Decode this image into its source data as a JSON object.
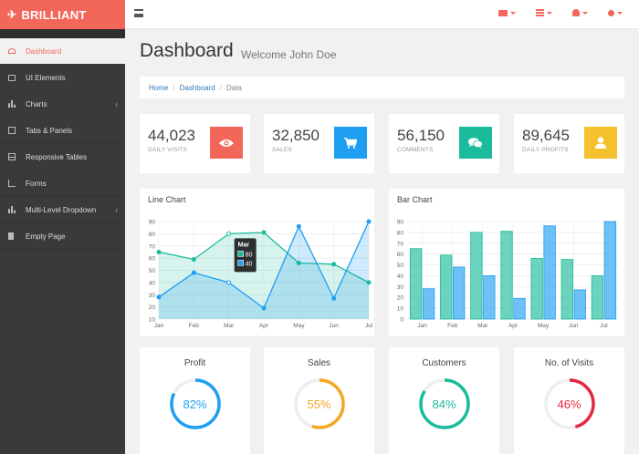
{
  "brand": {
    "name": "BRILLIANT",
    "icon": "plane-icon"
  },
  "topbar": {
    "icons": [
      {
        "name": "envelope-icon"
      },
      {
        "name": "tasks-icon"
      },
      {
        "name": "bell-icon"
      },
      {
        "name": "user-icon"
      }
    ],
    "accent": "#f3675b"
  },
  "sidebar": {
    "items": [
      {
        "label": "Dashboard",
        "icon": "dashboard-icon",
        "active": true
      },
      {
        "label": "UI Elements",
        "icon": "desktop-icon"
      },
      {
        "label": "Charts",
        "icon": "bar-chart-icon",
        "has_children": true
      },
      {
        "label": "Tabs & Panels",
        "icon": "qrcode-icon"
      },
      {
        "label": "Responsive Tables",
        "icon": "table-icon"
      },
      {
        "label": "Forms",
        "icon": "edit-icon"
      },
      {
        "label": "Multi-Level Dropdown",
        "icon": "sitemap-icon",
        "has_children": true
      },
      {
        "label": "Empty Page",
        "icon": "file-icon"
      }
    ],
    "chevron": "‹"
  },
  "header": {
    "title": "Dashboard",
    "subtitle": "Welcome John Doe"
  },
  "breadcrumb": {
    "items": [
      "Home",
      "Dashboard",
      "Data"
    ],
    "separator": "/"
  },
  "stats": [
    {
      "value": "44,023",
      "label": "DAILY VISITS",
      "icon": "eye-icon",
      "color": "#f3675b"
    },
    {
      "value": "32,850",
      "label": "SALES",
      "icon": "shopping-cart-icon",
      "color": "#1e9ff2"
    },
    {
      "value": "56,150",
      "label": "COMMENTS",
      "icon": "comments-icon",
      "color": "#1bbc9b"
    },
    {
      "value": "89,645",
      "label": "DAILY PROFITS",
      "icon": "user-icon",
      "color": "#f5c12e"
    }
  ],
  "charts": {
    "line": {
      "title": "Line Chart"
    },
    "bar": {
      "title": "Bar Chart"
    },
    "tooltip": {
      "title": "Mar",
      "values": [
        "80",
        "40"
      ]
    }
  },
  "chart_data": [
    {
      "type": "area",
      "title": "Line Chart",
      "categories": [
        "Jan",
        "Feb",
        "Mar",
        "Apr",
        "May",
        "Jun",
        "Jul"
      ],
      "ylim": [
        10,
        90
      ],
      "yticks": [
        10,
        20,
        30,
        40,
        50,
        60,
        70,
        80,
        90
      ],
      "grid": true,
      "series": [
        {
          "values": [
            65,
            59,
            80,
            81,
            56,
            55,
            40
          ],
          "color": "#1bbc9b"
        },
        {
          "values": [
            28,
            48,
            40,
            19,
            86,
            27,
            90
          ],
          "color": "#1e9ff2"
        }
      ]
    },
    {
      "type": "bar",
      "title": "Bar Chart",
      "categories": [
        "Jan",
        "Feb",
        "Mar",
        "Apr",
        "May",
        "Jun",
        "Jul"
      ],
      "ylim": [
        0,
        90
      ],
      "yticks": [
        0,
        10,
        20,
        30,
        40,
        50,
        60,
        70,
        80,
        90
      ],
      "grid": true,
      "series": [
        {
          "values": [
            65,
            59,
            80,
            81,
            56,
            55,
            40
          ],
          "color": "#1bbc9b"
        },
        {
          "values": [
            28,
            48,
            40,
            19,
            86,
            27,
            90
          ],
          "color": "#1e9ff2"
        }
      ]
    }
  ],
  "kpis": [
    {
      "title": "Profit",
      "value": "82%",
      "percent": 82,
      "color": "#1e9ff2"
    },
    {
      "title": "Sales",
      "value": "55%",
      "percent": 55,
      "color": "#f5a623"
    },
    {
      "title": "Customers",
      "value": "84%",
      "percent": 84,
      "color": "#1bbc9b"
    },
    {
      "title": "No. of Visits",
      "value": "46%",
      "percent": 46,
      "color": "#e5283f"
    }
  ]
}
